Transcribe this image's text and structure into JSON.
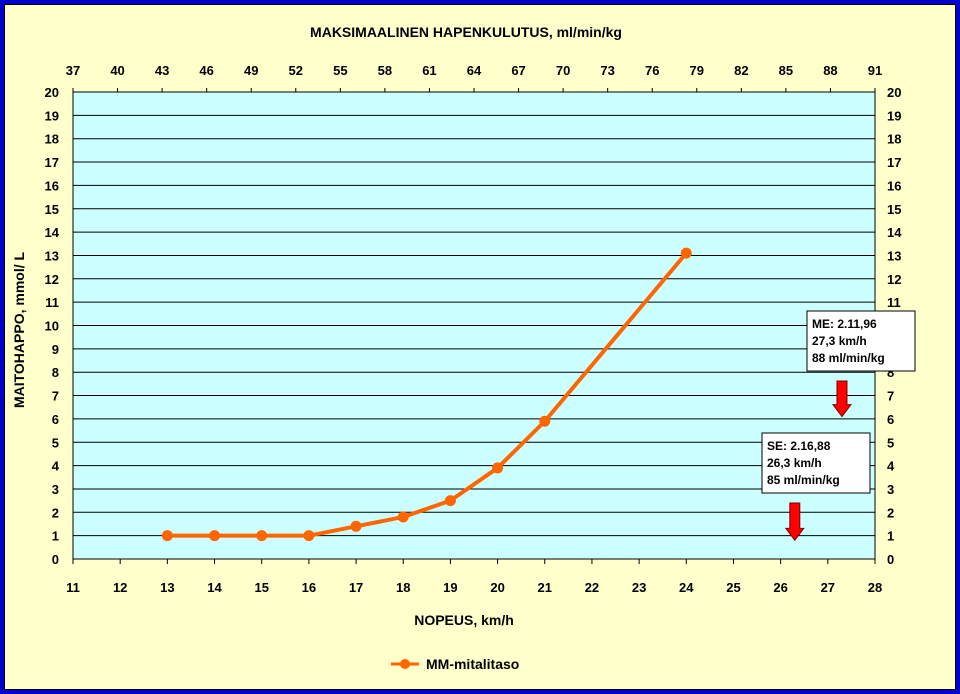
{
  "chart_data": {
    "type": "line",
    "title": "",
    "top_axis_label": "MAKSIMAALINEN HAPENKULUTUS, ml/min/kg",
    "top_ticks": [
      37,
      40,
      43,
      46,
      49,
      52,
      55,
      58,
      61,
      64,
      67,
      70,
      73,
      76,
      79,
      82,
      85,
      88,
      91
    ],
    "xlabel": "NOPEUS, km/h",
    "ylabel": "MAITOHAPPO, mmol/ L",
    "xlim": [
      11,
      28
    ],
    "ylim": [
      0,
      20
    ],
    "x_ticks": [
      11,
      12,
      13,
      14,
      15,
      16,
      17,
      18,
      19,
      20,
      21,
      22,
      23,
      24,
      25,
      26,
      27,
      28
    ],
    "y_ticks": [
      0,
      1,
      2,
      3,
      4,
      5,
      6,
      7,
      8,
      9,
      10,
      11,
      12,
      13,
      14,
      15,
      16,
      17,
      18,
      19,
      20
    ],
    "grid": true,
    "legend_position": "bottom-center",
    "series": [
      {
        "name": "MM-mitalitaso",
        "color": "#ff6600",
        "x": [
          13,
          14,
          15,
          16,
          17,
          18,
          19,
          20,
          21,
          24
        ],
        "y": [
          1,
          1,
          1,
          1,
          1.4,
          1.8,
          2.5,
          3.9,
          5.9,
          13.1
        ]
      }
    ],
    "annotations": [
      {
        "lines": [
          "ME: 2.11,96",
          "27,3 km/h",
          "88 ml/min/kg"
        ],
        "arrow_x": 27.3
      },
      {
        "lines": [
          "SE: 2.16,88",
          "26,3 km/h",
          "85 ml/min/kg"
        ],
        "arrow_x": 26.3
      }
    ]
  }
}
